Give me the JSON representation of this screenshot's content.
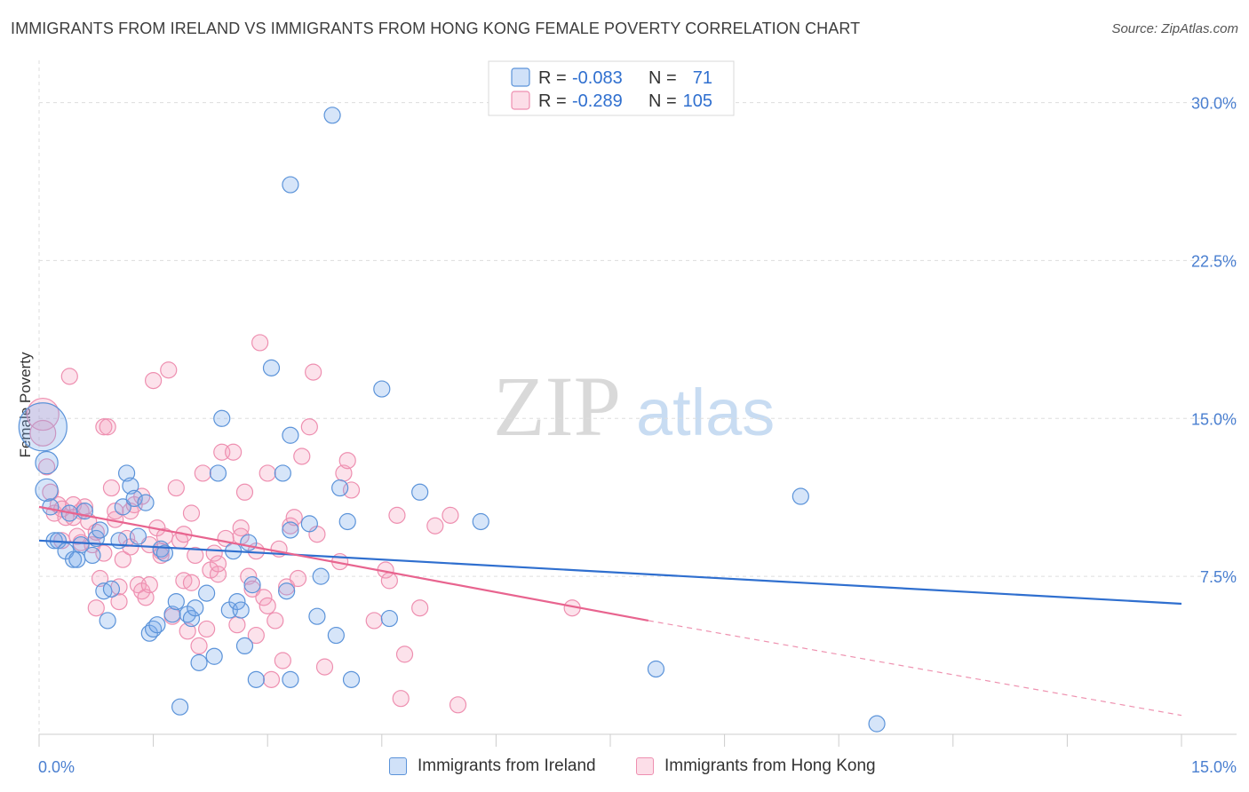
{
  "title": "IMMIGRANTS FROM IRELAND VS IMMIGRANTS FROM HONG KONG FEMALE POVERTY CORRELATION CHART",
  "source": "Source: ZipAtlas.com",
  "watermark": {
    "zip": "ZIP",
    "atlas": "atlas"
  },
  "colors": {
    "ireland_fill": "rgba(120,170,235,0.30)",
    "ireland_stroke": "#5b93d9",
    "ireland_line": "#2f6fcf",
    "hongkong_fill": "rgba(245,160,190,0.30)",
    "hongkong_stroke": "#ee8fb0",
    "hongkong_line": "#e8648f",
    "tick_text": "#4a7fd0",
    "grid": "#dddddd"
  },
  "legend": {
    "ireland": {
      "r_label": "R =",
      "r_value": "-0.083",
      "n_label": "N =",
      "n_value": "71"
    },
    "hongkong": {
      "r_label": "R =",
      "r_value": "-0.289",
      "n_label": "N =",
      "n_value": "105"
    }
  },
  "bottom_legend": {
    "ireland": "Immigrants from Ireland",
    "hongkong": "Immigrants from Hong Kong"
  },
  "chart_data": {
    "type": "scatter",
    "title": "IMMIGRANTS FROM IRELAND VS IMMIGRANTS FROM HONG KONG FEMALE POVERTY CORRELATION CHART",
    "xlabel": "",
    "ylabel": "Female Poverty",
    "xlim": [
      0,
      15
    ],
    "ylim": [
      0,
      31.5
    ],
    "x_tick_labels": [
      "0.0%",
      "15.0%"
    ],
    "y_ticks": [
      7.5,
      15.0,
      22.5,
      30.0
    ],
    "y_tick_labels": [
      "7.5%",
      "15.0%",
      "22.5%",
      "30.0%"
    ],
    "grid": true,
    "legend_position": "top-center",
    "series": [
      {
        "name": "Immigrants from Ireland",
        "r": -0.083,
        "n": 71,
        "trend": {
          "x": [
            0,
            15
          ],
          "y": [
            9.2,
            6.2
          ]
        },
        "points": [
          [
            0.05,
            14.6,
            3
          ],
          [
            0.1,
            12.9,
            1.4
          ],
          [
            0.1,
            11.6,
            1.4
          ],
          [
            0.2,
            9.2,
            1
          ],
          [
            0.25,
            9.2,
            1
          ],
          [
            0.35,
            8.7,
            1
          ],
          [
            0.4,
            10.5,
            1
          ],
          [
            0.45,
            8.3,
            1
          ],
          [
            0.5,
            8.3,
            1
          ],
          [
            0.55,
            9.0,
            1
          ],
          [
            0.6,
            10.6,
            1
          ],
          [
            0.7,
            8.5,
            1
          ],
          [
            0.75,
            9.3,
            1
          ],
          [
            0.8,
            9.7,
            1
          ],
          [
            0.85,
            6.8,
            1
          ],
          [
            0.9,
            5.4,
            1
          ],
          [
            0.95,
            6.9,
            1
          ],
          [
            1.05,
            9.2,
            1
          ],
          [
            1.1,
            10.8,
            1
          ],
          [
            1.15,
            12.4,
            1
          ],
          [
            1.2,
            11.8,
            1
          ],
          [
            1.25,
            11.2,
            1
          ],
          [
            1.3,
            9.4,
            1
          ],
          [
            1.4,
            11.0,
            1
          ],
          [
            1.45,
            4.8,
            1
          ],
          [
            1.5,
            5.0,
            1
          ],
          [
            1.55,
            5.2,
            1
          ],
          [
            1.6,
            8.8,
            1
          ],
          [
            1.65,
            8.6,
            1
          ],
          [
            1.75,
            5.7,
            1
          ],
          [
            1.8,
            6.3,
            1
          ],
          [
            1.85,
            1.3,
            1
          ],
          [
            1.95,
            5.7,
            1
          ],
          [
            2.0,
            5.5,
            1
          ],
          [
            2.05,
            6.0,
            1
          ],
          [
            2.1,
            3.4,
            1
          ],
          [
            2.2,
            6.7,
            1
          ],
          [
            2.3,
            3.7,
            1
          ],
          [
            2.35,
            12.4,
            1
          ],
          [
            2.4,
            15.0,
            1
          ],
          [
            2.5,
            5.9,
            1
          ],
          [
            2.55,
            8.7,
            1
          ],
          [
            2.6,
            6.3,
            1
          ],
          [
            2.65,
            5.9,
            1
          ],
          [
            2.7,
            4.2,
            1
          ],
          [
            2.75,
            9.1,
            1
          ],
          [
            2.8,
            7.1,
            1
          ],
          [
            2.85,
            2.6,
            1
          ],
          [
            3.05,
            17.4,
            1
          ],
          [
            3.2,
            12.4,
            1
          ],
          [
            3.25,
            6.8,
            1
          ],
          [
            3.3,
            2.6,
            1
          ],
          [
            3.3,
            26.1,
            1
          ],
          [
            3.3,
            9.7,
            1
          ],
          [
            3.3,
            14.2,
            1
          ],
          [
            3.55,
            10.0,
            1
          ],
          [
            3.65,
            5.6,
            1
          ],
          [
            3.7,
            7.5,
            1
          ],
          [
            3.85,
            29.4,
            1
          ],
          [
            3.9,
            4.7,
            1
          ],
          [
            3.95,
            11.7,
            1
          ],
          [
            4.05,
            10.1,
            1
          ],
          [
            4.1,
            2.6,
            1
          ],
          [
            4.5,
            16.4,
            1
          ],
          [
            4.6,
            5.5,
            1
          ],
          [
            5.0,
            11.5,
            1
          ],
          [
            5.8,
            10.1,
            1
          ],
          [
            8.1,
            3.1,
            1
          ],
          [
            10.0,
            11.3,
            1
          ],
          [
            11.0,
            0.5,
            1
          ],
          [
            0.15,
            10.8,
            1
          ]
        ]
      },
      {
        "name": "Immigrants from Hong Kong",
        "r": -0.289,
        "n": 105,
        "trend": {
          "x": [
            0,
            8.0
          ],
          "y": [
            10.8,
            5.4
          ]
        },
        "trend_dashed": {
          "x": [
            8.0,
            15
          ],
          "y": [
            5.4,
            0.9
          ]
        },
        "points": [
          [
            0.05,
            15.2,
            2
          ],
          [
            0.05,
            14.3,
            1.6
          ],
          [
            0.1,
            12.7,
            1
          ],
          [
            0.15,
            11.5,
            1
          ],
          [
            0.2,
            10.5,
            1
          ],
          [
            0.25,
            10.9,
            1
          ],
          [
            0.3,
            9.2,
            1
          ],
          [
            0.35,
            10.3,
            1
          ],
          [
            0.4,
            17.0,
            1
          ],
          [
            0.45,
            10.9,
            1
          ],
          [
            0.5,
            9.4,
            1
          ],
          [
            0.55,
            10.6,
            1
          ],
          [
            0.6,
            10.8,
            1
          ],
          [
            0.65,
            10.1,
            1
          ],
          [
            0.7,
            9.0,
            1
          ],
          [
            0.75,
            6.0,
            1
          ],
          [
            0.8,
            7.4,
            1
          ],
          [
            0.85,
            8.6,
            1
          ],
          [
            0.85,
            14.6,
            1
          ],
          [
            0.9,
            14.6,
            1
          ],
          [
            0.95,
            11.7,
            1
          ],
          [
            1.0,
            10.2,
            1
          ],
          [
            1.05,
            7.0,
            1
          ],
          [
            1.05,
            6.3,
            1
          ],
          [
            1.1,
            8.3,
            1
          ],
          [
            1.15,
            9.3,
            1
          ],
          [
            1.2,
            10.6,
            1
          ],
          [
            1.25,
            10.9,
            1
          ],
          [
            1.3,
            7.1,
            1
          ],
          [
            1.35,
            6.8,
            1
          ],
          [
            1.35,
            11.3,
            1
          ],
          [
            1.4,
            6.5,
            1
          ],
          [
            1.45,
            7.1,
            1
          ],
          [
            1.5,
            16.8,
            1
          ],
          [
            1.55,
            9.8,
            1
          ],
          [
            1.6,
            8.5,
            1
          ],
          [
            1.65,
            9.4,
            1
          ],
          [
            1.7,
            17.3,
            1
          ],
          [
            1.75,
            5.6,
            1
          ],
          [
            1.8,
            11.7,
            1
          ],
          [
            1.85,
            9.2,
            1
          ],
          [
            1.9,
            7.3,
            1
          ],
          [
            1.95,
            4.9,
            1
          ],
          [
            2.0,
            10.5,
            1
          ],
          [
            2.05,
            8.5,
            1
          ],
          [
            2.1,
            4.2,
            1
          ],
          [
            2.15,
            12.4,
            1
          ],
          [
            2.2,
            5.0,
            1
          ],
          [
            2.25,
            7.8,
            1
          ],
          [
            2.3,
            8.6,
            1
          ],
          [
            2.35,
            7.6,
            1
          ],
          [
            2.4,
            13.4,
            1
          ],
          [
            2.45,
            9.3,
            1
          ],
          [
            2.55,
            13.4,
            1
          ],
          [
            2.6,
            5.2,
            1
          ],
          [
            2.65,
            9.8,
            1
          ],
          [
            2.7,
            11.5,
            1
          ],
          [
            2.75,
            7.5,
            1
          ],
          [
            2.8,
            6.9,
            1
          ],
          [
            2.85,
            4.7,
            1
          ],
          [
            2.9,
            18.6,
            1
          ],
          [
            2.95,
            6.5,
            1
          ],
          [
            3.0,
            12.4,
            1
          ],
          [
            3.05,
            2.6,
            1
          ],
          [
            3.1,
            5.4,
            1
          ],
          [
            3.15,
            8.8,
            1
          ],
          [
            3.2,
            3.5,
            1
          ],
          [
            3.25,
            7.0,
            1
          ],
          [
            3.3,
            9.9,
            1
          ],
          [
            3.35,
            10.3,
            1
          ],
          [
            3.45,
            13.2,
            1
          ],
          [
            3.55,
            14.6,
            1
          ],
          [
            3.6,
            17.2,
            1
          ],
          [
            3.65,
            9.5,
            1
          ],
          [
            3.75,
            3.2,
            1
          ],
          [
            4.0,
            12.4,
            1
          ],
          [
            4.05,
            13.0,
            1
          ],
          [
            4.1,
            11.6,
            1
          ],
          [
            4.4,
            5.4,
            1
          ],
          [
            4.55,
            7.8,
            1
          ],
          [
            4.6,
            7.3,
            1
          ],
          [
            4.7,
            10.4,
            1
          ],
          [
            4.75,
            1.7,
            1
          ],
          [
            4.8,
            3.8,
            1
          ],
          [
            5.0,
            6.0,
            1
          ],
          [
            5.2,
            9.9,
            1
          ],
          [
            5.4,
            10.4,
            1
          ],
          [
            5.5,
            1.4,
            1
          ],
          [
            7.0,
            6.0,
            1
          ],
          [
            0.3,
            10.7,
            1
          ],
          [
            0.55,
            9.1,
            1
          ],
          [
            1.0,
            10.6,
            1
          ],
          [
            1.6,
            8.7,
            1
          ],
          [
            2.0,
            7.2,
            1
          ],
          [
            2.65,
            9.4,
            1
          ],
          [
            3.0,
            6.1,
            1
          ],
          [
            0.45,
            10.3,
            1
          ],
          [
            0.75,
            9.6,
            1
          ],
          [
            1.2,
            8.9,
            1
          ],
          [
            1.45,
            9.0,
            1
          ],
          [
            1.9,
            9.5,
            1
          ],
          [
            2.35,
            8.1,
            1
          ],
          [
            2.85,
            8.7,
            1
          ],
          [
            3.4,
            7.4,
            1
          ],
          [
            3.95,
            8.2,
            1
          ]
        ]
      }
    ]
  }
}
